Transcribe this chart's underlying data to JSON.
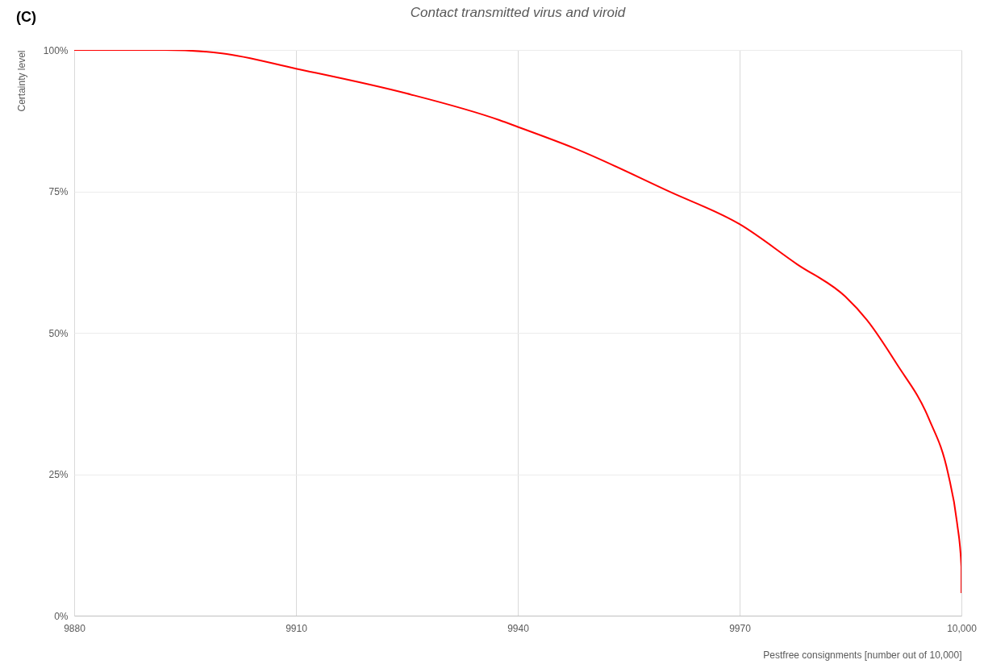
{
  "chart_data": {
    "type": "line",
    "title": "Contact transmitted virus and viroid",
    "xlabel": "Pestfree consignments [number out of 10,000]",
    "ylabel": "Certainty level",
    "annotations": [
      "(C)"
    ],
    "x": [
      9880,
      9892.1,
      9900,
      9910,
      9925,
      9937.5,
      9940,
      9947.7,
      9960.6,
      9970,
      9977.8,
      9984.3,
      9987.2,
      9991.3,
      9995.6,
      9998.2,
      9999.4,
      10000,
      10000
    ],
    "series": [
      {
        "color": "#ff0000",
        "values": [
          100,
          100,
          99.4,
          96.7,
          92.3,
          87.6,
          86.4,
          82.6,
          74.9,
          69.2,
          62.1,
          56.4,
          52.3,
          44.4,
          34.8,
          25.1,
          16.5,
          8.6,
          4
        ]
      }
    ],
    "xlim": [
      9880,
      10000
    ],
    "ylim": [
      0,
      100
    ],
    "xticks": [
      9880,
      9910,
      9940,
      9970,
      {
        "value": 10000,
        "label": "10,000"
      }
    ],
    "yticks": [
      {
        "value": 0,
        "label": "0%"
      },
      {
        "value": 25,
        "label": "25%"
      },
      {
        "value": 50,
        "label": "50%"
      },
      {
        "value": 75,
        "label": "75%"
      },
      {
        "value": 100,
        "label": "100%"
      }
    ],
    "grid": true
  }
}
